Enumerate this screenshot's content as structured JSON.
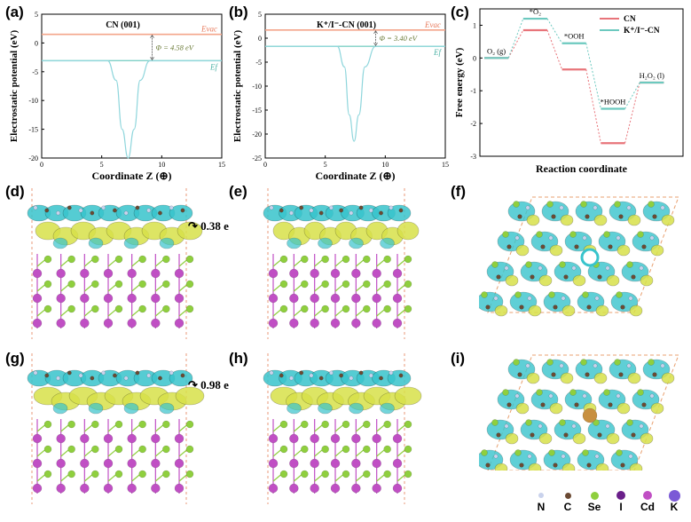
{
  "panel_labels": [
    "(a)",
    "(b)",
    "(c)",
    "(d)",
    "(e)",
    "(f)",
    "(g)",
    "(h)",
    "(i)"
  ],
  "chart_data": [
    {
      "type": "line",
      "title": "CN (001)",
      "xlabel": "Coordinate Z (⊕)",
      "ylabel": "Electrostatic potential (eV)",
      "xlim": [
        0,
        15
      ],
      "ylim": [
        -20,
        5
      ],
      "xticks": [
        "0",
        "5",
        "10",
        "15"
      ],
      "yticks": [
        "5",
        "0",
        "-5",
        "-10",
        "-15",
        "-20"
      ],
      "evac_label": "E_vac",
      "evac_value": 1.5,
      "ef_label": "E_f",
      "ef_value": -3.08,
      "phi_label": "Φ = 4.58 eV",
      "curve": {
        "x": [
          0,
          5.5,
          6.2,
          6.7,
          7.2,
          7.7,
          8.2,
          9.0,
          15
        ],
        "y": [
          -3.1,
          -3.1,
          -6.5,
          -15,
          -20,
          -15,
          -6.5,
          -3.1,
          -3.1
        ]
      }
    },
    {
      "type": "line",
      "title": "K⁺/I⁻-CN (001)",
      "xlabel": "Coordinate Z (⊕)",
      "ylabel": "Electrostatic potential (eV)",
      "xlim": [
        0,
        15
      ],
      "ylim": [
        -25,
        5
      ],
      "xticks": [
        "0",
        "5",
        "10",
        "15"
      ],
      "yticks": [
        "5",
        "0",
        "-5",
        "-10",
        "-15",
        "-20",
        "-25"
      ],
      "evac_label": "E_vac",
      "evac_value": 1.7,
      "ef_label": "E_f",
      "ef_value": -1.7,
      "phi_label": "Φ = 3.40 eV",
      "curve": {
        "x": [
          0,
          6.0,
          6.6,
          7.0,
          7.4,
          7.8,
          8.3,
          9.2,
          15
        ],
        "y": [
          -1.7,
          -1.7,
          -6,
          -16,
          -21.5,
          -16,
          -6,
          -1.7,
          -1.7
        ]
      }
    },
    {
      "type": "step",
      "xlabel": "Reaction coordinate",
      "ylabel": "Free energy (eV)",
      "ylim": [
        -3,
        1.5
      ],
      "yticks": [
        "1",
        "0",
        "-1",
        "-2",
        "-3"
      ],
      "steps": [
        "O₂ (g)",
        "*O₂",
        "*OOH",
        "*HOOH",
        "H₂O₂ (l)"
      ],
      "series": [
        {
          "name": "CN",
          "color": "#e8747a",
          "values": [
            0,
            0.85,
            -0.35,
            -2.6,
            -0.75
          ]
        },
        {
          "name": "K⁺/I⁻-CN",
          "color": "#6cc9bf",
          "values": [
            0,
            1.2,
            0.45,
            -1.55,
            -0.75
          ]
        }
      ]
    }
  ],
  "charge_labels": {
    "d": "0.38 e",
    "g": "0.98 e"
  },
  "element_legend": [
    {
      "symbol": "N",
      "color": "#c9d2ec",
      "size": 3
    },
    {
      "symbol": "C",
      "color": "#6b4a33",
      "size": 3.5
    },
    {
      "symbol": "Se",
      "color": "#8fcf3e",
      "size": 4.5
    },
    {
      "symbol": "I",
      "color": "#6a1f8a",
      "size": 5
    },
    {
      "symbol": "Cd",
      "color": "#c04fc4",
      "size": 5
    },
    {
      "symbol": "K",
      "color": "#7b5ad6",
      "size": 6.5
    }
  ],
  "colors": {
    "evac_line": "#f4a58a",
    "ef_line": "#7fd0c6",
    "curve": "#8fd6dc",
    "cyan_iso": "#38c4cc",
    "yellow_iso": "#d8e14a",
    "se": "#8fcf3e",
    "cd": "#c04fc4"
  }
}
